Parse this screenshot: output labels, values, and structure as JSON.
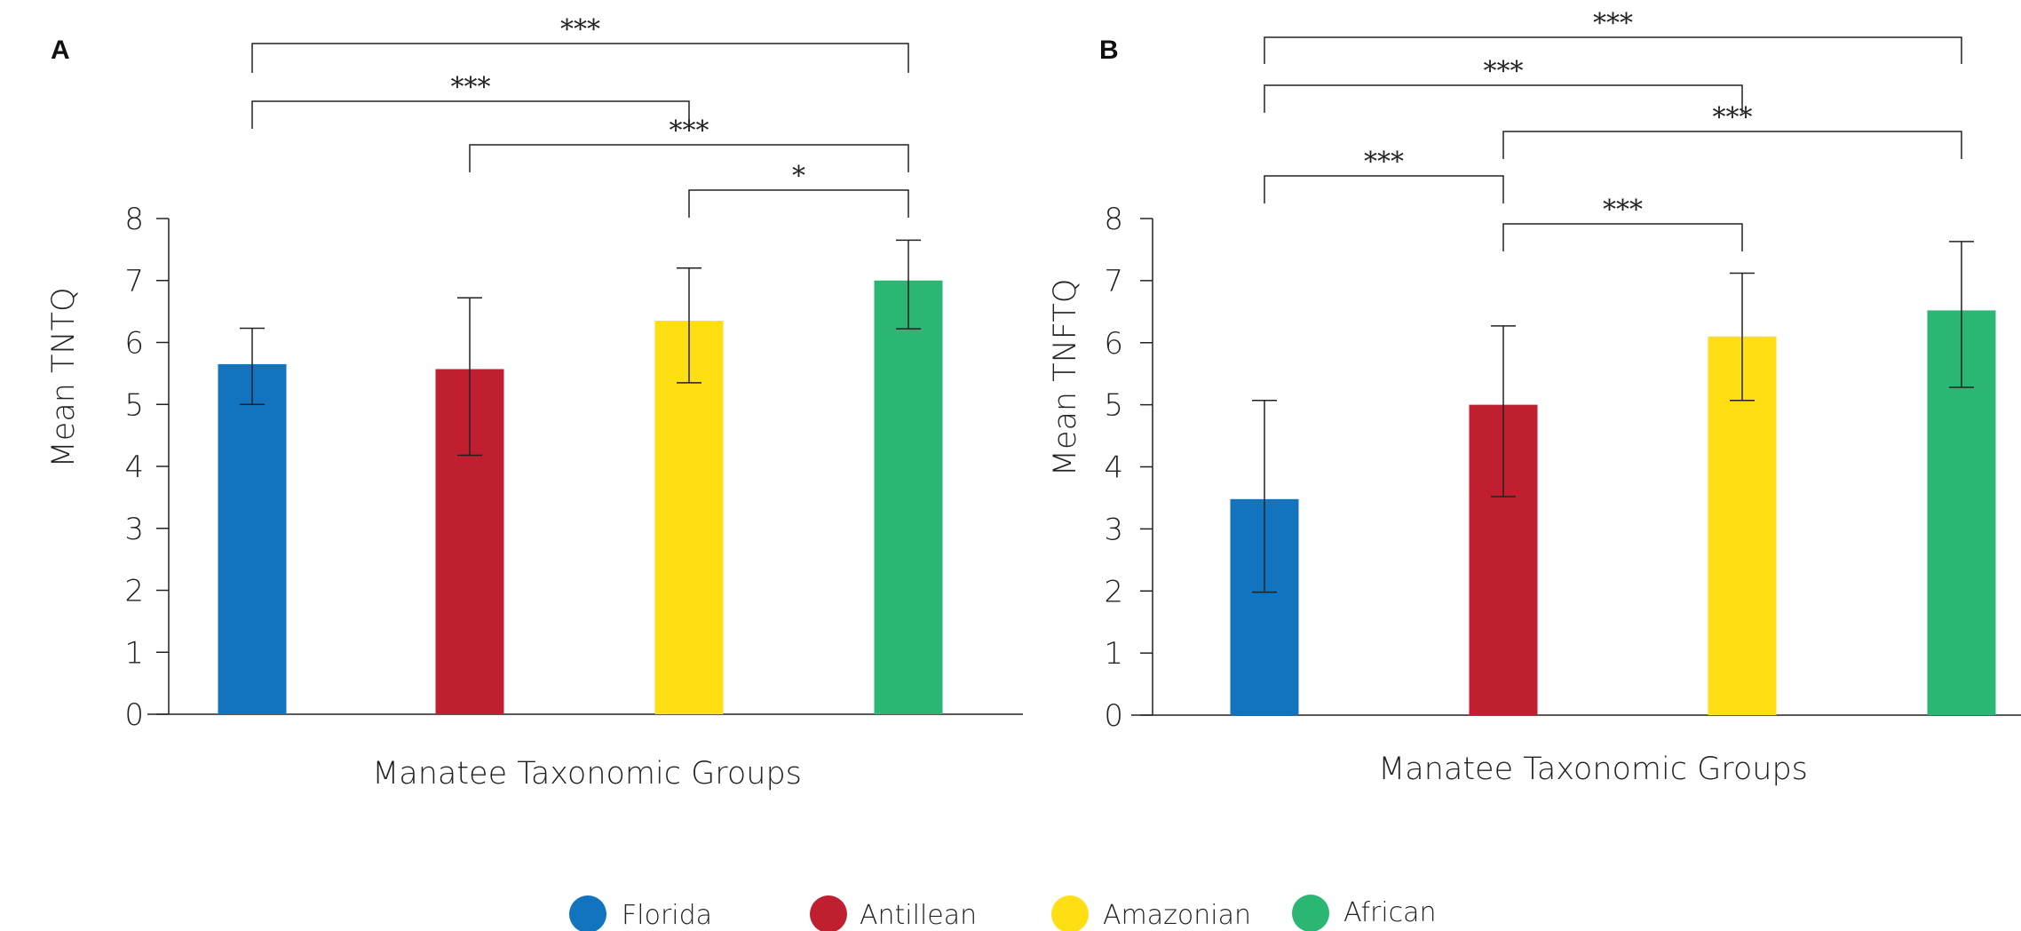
{
  "legend": [
    {
      "label": "Florida",
      "color": "#1273BE"
    },
    {
      "label": "Antillean",
      "color": "#C01F2F"
    },
    {
      "label": "Amazonian",
      "color": "#FFDF14"
    },
    {
      "label": "African",
      "color": "#2BB673"
    }
  ],
  "chart_data": [
    {
      "type": "bar",
      "panel": "A",
      "categories": [
        "Florida",
        "Antillean",
        "Amazonian",
        "African"
      ],
      "values": [
        5.65,
        5.57,
        6.35,
        7.0
      ],
      "error_low": [
        5.0,
        4.18,
        5.35,
        6.22
      ],
      "error_high": [
        6.23,
        6.72,
        7.2,
        7.65
      ],
      "colors": [
        "#1273BE",
        "#C01F2F",
        "#FFDF14",
        "#2BB673"
      ],
      "xlabel": "Manatee Taxonomic Groups",
      "ylabel": "Mean TNTQ",
      "ylim": [
        0,
        8
      ],
      "yticks": [
        0,
        1,
        2,
        3,
        4,
        5,
        6,
        7,
        8
      ],
      "grid": false,
      "significance": [
        {
          "from": "Florida",
          "to": "African",
          "label": "***"
        },
        {
          "from": "Florida",
          "to": "Amazonian",
          "label": "***"
        },
        {
          "from": "Antillean",
          "to": "African",
          "label": "***"
        },
        {
          "from": "Amazonian",
          "to": "African",
          "label": "*"
        }
      ]
    },
    {
      "type": "bar",
      "panel": "B",
      "categories": [
        "Florida",
        "Antillean",
        "Amazonian",
        "African"
      ],
      "values": [
        3.48,
        5.0,
        6.1,
        6.52
      ],
      "error_low": [
        1.98,
        3.52,
        5.07,
        5.28
      ],
      "error_high": [
        5.07,
        6.27,
        7.12,
        7.63
      ],
      "colors": [
        "#1273BE",
        "#C01F2F",
        "#FFDF14",
        "#2BB673"
      ],
      "xlabel": "Manatee Taxonomic Groups",
      "ylabel": "Mean TNFTQ",
      "ylim": [
        0,
        8
      ],
      "yticks": [
        0,
        1,
        2,
        3,
        4,
        5,
        6,
        7,
        8
      ],
      "grid": false,
      "significance": [
        {
          "from": "Florida",
          "to": "African",
          "label": "***"
        },
        {
          "from": "Florida",
          "to": "Amazonian",
          "label": "***"
        },
        {
          "from": "Antillean",
          "to": "African",
          "label": "***"
        },
        {
          "from": "Florida",
          "to": "Antillean",
          "label": "***"
        },
        {
          "from": "Antillean",
          "to": "Amazonian",
          "label": "***"
        }
      ]
    }
  ]
}
